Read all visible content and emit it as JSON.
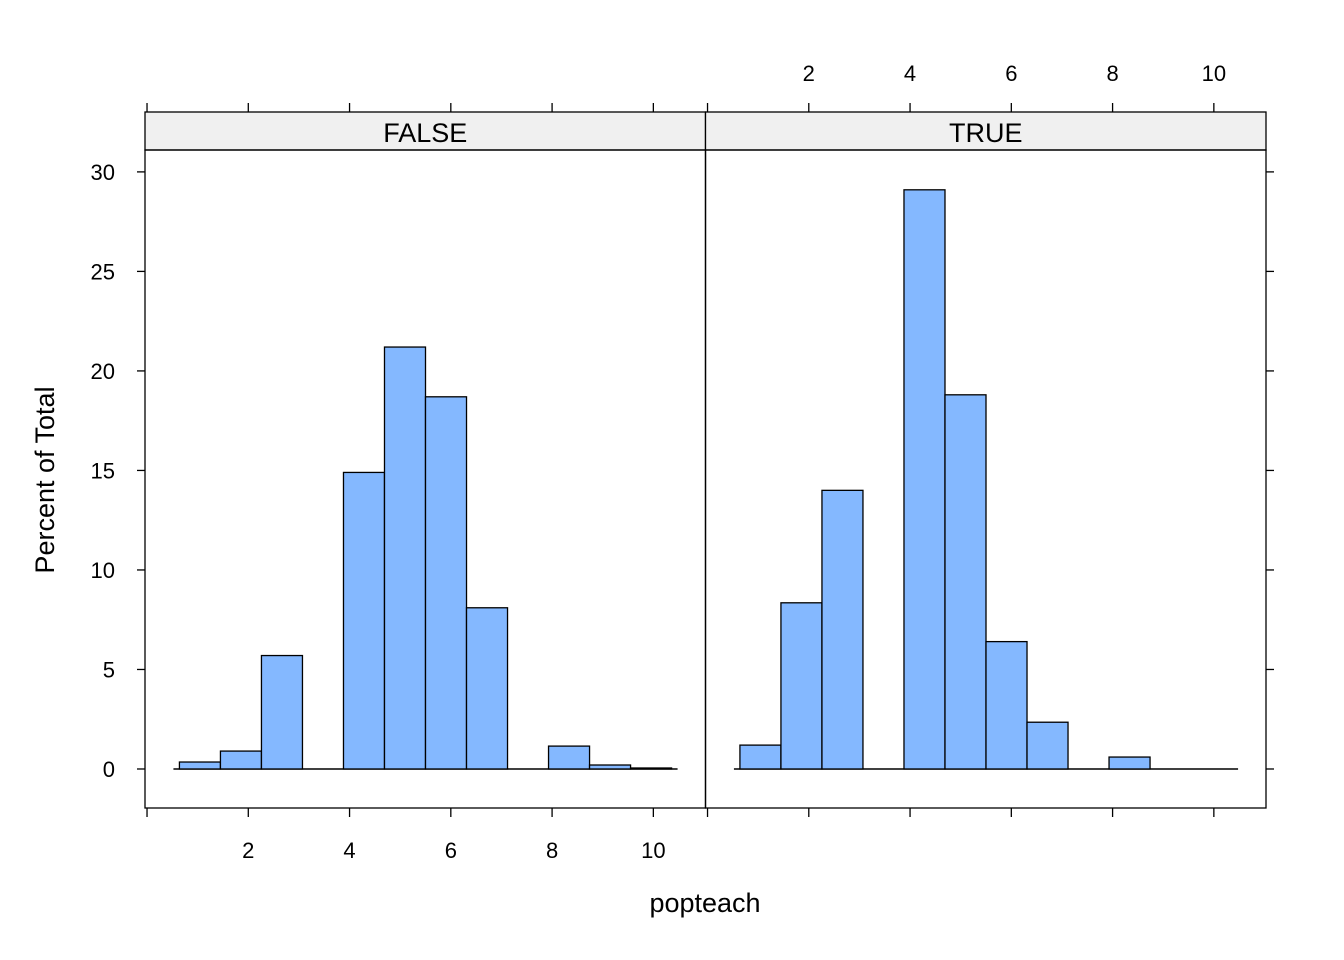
{
  "chart_data": {
    "type": "bar",
    "subtype": "histogram-trellis",
    "xlabel": "popteach",
    "ylabel": "Percent of Total",
    "xlim": [
      -0.04,
      11.03
    ],
    "ylim": [
      -1.96,
      31.1
    ],
    "x_ticks": [
      0,
      2,
      4,
      6,
      8,
      10
    ],
    "x_tick_labels": [
      "",
      "2",
      "4",
      "6",
      "8",
      "10"
    ],
    "y_ticks": [
      0,
      5,
      10,
      15,
      20,
      25,
      30
    ],
    "y_tick_labels": [
      "0",
      "5",
      "10",
      "15",
      "20",
      "25",
      "30"
    ],
    "bar_color": "#84B8FF",
    "strip_color": "#F0F0F0",
    "breaks": [
      0.64,
      1.45,
      2.26,
      3.07,
      3.88,
      4.69,
      5.5,
      6.31,
      7.12,
      7.93,
      8.74,
      9.55,
      10.36
    ],
    "panels": [
      {
        "strip": "FALSE",
        "values": [
          0.35,
          0.9,
          5.7,
          0,
          14.9,
          21.2,
          18.7,
          8.1,
          0,
          1.15,
          0.2,
          0.05
        ]
      },
      {
        "strip": "TRUE",
        "values": [
          1.2,
          8.35,
          14.0,
          0,
          29.1,
          18.8,
          6.4,
          2.35,
          0,
          0.6,
          0,
          0
        ]
      }
    ],
    "grid": false,
    "legend": "none"
  }
}
